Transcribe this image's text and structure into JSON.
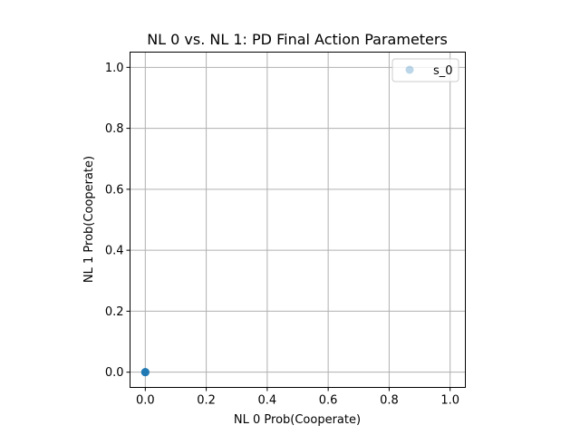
{
  "chart_data": {
    "type": "scatter",
    "title": "NL 0 vs. NL 1: PD Final Action Parameters",
    "xlabel": "NL 0 Prob(Cooperate)",
    "ylabel": "NL 1 Prob(Cooperate)",
    "xlim": [
      -0.05,
      1.05
    ],
    "ylim": [
      -0.05,
      1.05
    ],
    "xticks": [
      "0.0",
      "0.2",
      "0.4",
      "0.6",
      "0.8",
      "1.0"
    ],
    "yticks": [
      "0.0",
      "0.2",
      "0.4",
      "0.6",
      "0.8",
      "1.0"
    ],
    "grid": true,
    "legend_position": "top-right",
    "series": [
      {
        "name": "s_0",
        "color": "#1f77b4",
        "alpha": 0.3,
        "points": [
          [
            0.0,
            0.0
          ],
          [
            0.0,
            0.0
          ],
          [
            0.0,
            0.0
          ],
          [
            0.0,
            0.0
          ],
          [
            0.0,
            0.0
          ],
          [
            0.0,
            0.0
          ],
          [
            0.0,
            0.0
          ],
          [
            0.0,
            0.0
          ],
          [
            0.0,
            0.0
          ],
          [
            0.0,
            0.0
          ]
        ]
      }
    ]
  }
}
